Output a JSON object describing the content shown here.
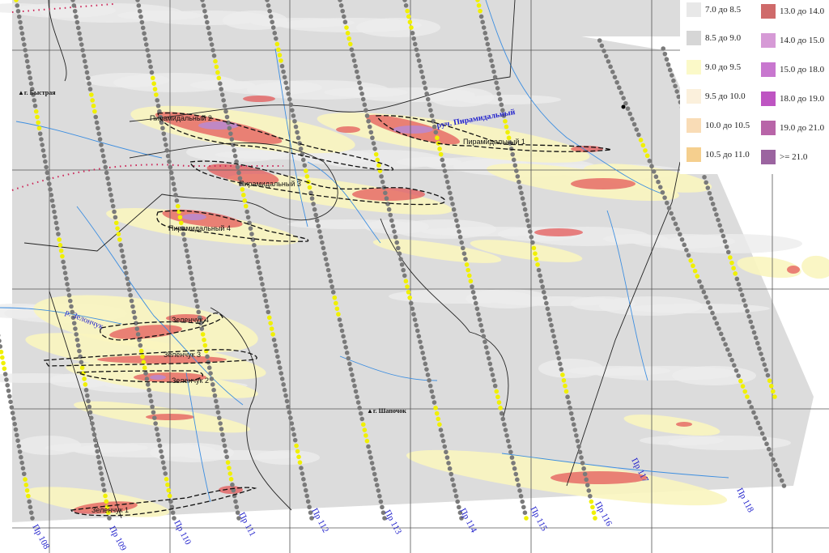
{
  "map": {
    "places": [
      {
        "name": "г. Быстрая",
        "icon": "triangle-peak-icon"
      },
      {
        "name": "г. Шапочок",
        "icon": "triangle-peak-icon"
      }
    ],
    "rivers": [
      "руч. Пирамидальный",
      "р. Зелончук"
    ],
    "anomalies": [
      "Пирамидальный 1",
      "Пирамидальный 2",
      "Пирамидальный 3",
      "Пирамидальный 4",
      "Зеленчук 1",
      "Зеленчук 2",
      "Зеленчук 3",
      "Зеленчук 4"
    ],
    "profiles": [
      "Пр 108",
      "Пр 109",
      "Пр 110",
      "Пр 111",
      "Пр 112",
      "Пр 113",
      "Пр 114",
      "Пр 115",
      "Пр 116",
      "Пр 117",
      "Пр 118"
    ]
  },
  "legend": {
    "left": [
      {
        "label": "7.0 до 8.5",
        "color": "#e8e8e8"
      },
      {
        "label": "8.5 до 9.0",
        "color": "#d6d6d6"
      },
      {
        "label": "9.0 до 9.5",
        "color": "#fbf9c8"
      },
      {
        "label": "9.5 до 10.0",
        "color": "#fbf0dc"
      },
      {
        "label": "10.0 до 10.5",
        "color": "#f9dcb6"
      },
      {
        "label": "10.5 до 11.0",
        "color": "#f5cf8e"
      }
    ],
    "right": [
      {
        "label": "13.0 до 14.0",
        "color": "#cf6a6a"
      },
      {
        "label": "14.0 до 15.0",
        "color": "#d69ad6"
      },
      {
        "label": "15.0 до 18.0",
        "color": "#c877cf"
      },
      {
        "label": "18.0 до 19.0",
        "color": "#be55c2"
      },
      {
        "label": "19.0 до 21.0",
        "color": "#b865a8"
      },
      {
        "label": ">= 21.0",
        "color": "#9b64a0"
      }
    ]
  },
  "colors": {
    "background": "#dcdcdc",
    "river": "#3d8ee0",
    "profile": "#7a7a7a",
    "profile_highlight": "#f0f000",
    "anomaly": "#e45a5a",
    "label": "#2222cc",
    "border_dotted": "#cc2255"
  }
}
